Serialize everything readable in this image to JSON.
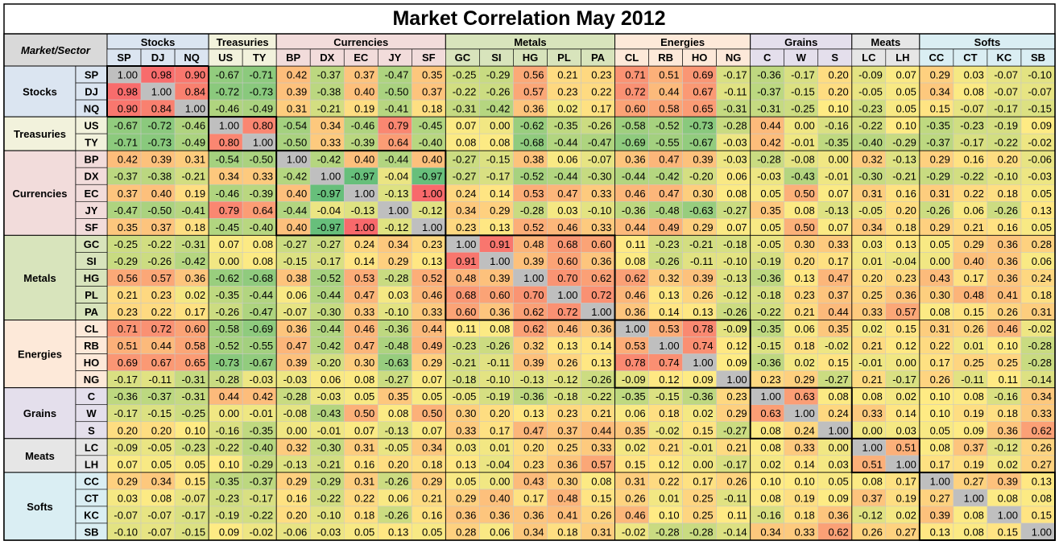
{
  "chart_data": {
    "type": "heatmap",
    "title": "Market Correlation May 2012",
    "corner_label": "Market/Sector",
    "groups": [
      {
        "name": "Stocks",
        "members": [
          "SP",
          "DJ",
          "NQ"
        ],
        "color": "#dbe5f1"
      },
      {
        "name": "Treasuries",
        "members": [
          "US",
          "TY"
        ],
        "color": "#f2f2dc"
      },
      {
        "name": "Currencies",
        "members": [
          "BP",
          "DX",
          "EC",
          "JY",
          "SF"
        ],
        "color": "#f2dcdb"
      },
      {
        "name": "Metals",
        "members": [
          "GC",
          "SI",
          "HG",
          "PL",
          "PA"
        ],
        "color": "#d8e4bc"
      },
      {
        "name": "Energies",
        "members": [
          "CL",
          "RB",
          "HO",
          "NG"
        ],
        "color": "#fde9d9"
      },
      {
        "name": "Grains",
        "members": [
          "C",
          "W",
          "S"
        ],
        "color": "#e4dfec"
      },
      {
        "name": "Meats",
        "members": [
          "LC",
          "LH"
        ],
        "color": "#e6e6e6"
      },
      {
        "name": "Softs",
        "members": [
          "CC",
          "CT",
          "KC",
          "SB"
        ],
        "color": "#daeef3"
      }
    ],
    "labels": [
      "SP",
      "DJ",
      "NQ",
      "US",
      "TY",
      "BP",
      "DX",
      "EC",
      "JY",
      "SF",
      "GC",
      "SI",
      "HG",
      "PL",
      "PA",
      "CL",
      "RB",
      "HO",
      "NG",
      "C",
      "W",
      "S",
      "LC",
      "LH",
      "CC",
      "CT",
      "KC",
      "SB"
    ],
    "matrix": [
      [
        "1.00",
        "0.98",
        "0.90",
        "-0.67",
        "-0.71",
        "0.42",
        "-0.37",
        "0.37",
        "-0.47",
        "0.35",
        "-0.25",
        "-0.29",
        "0.56",
        "0.21",
        "0.23",
        "0.71",
        "0.51",
        "0.69",
        "-0.17",
        "-0.36",
        "-0.17",
        "0.20",
        "-0.09",
        "0.07",
        "0.29",
        "0.03",
        "-0.07",
        "-0.10"
      ],
      [
        "0.98",
        "1.00",
        "0.84",
        "-0.72",
        "-0.73",
        "0.39",
        "-0.38",
        "0.40",
        "-0.50",
        "0.37",
        "-0.22",
        "-0.26",
        "0.57",
        "0.23",
        "0.22",
        "0.72",
        "0.44",
        "0.67",
        "-0.11",
        "-0.37",
        "-0.15",
        "0.20",
        "-0.05",
        "0.05",
        "0.34",
        "0.08",
        "-0.07",
        "-0.07"
      ],
      [
        "0.90",
        "0.84",
        "1.00",
        "-0.46",
        "-0.49",
        "0.31",
        "-0.21",
        "0.19",
        "-0.41",
        "0.18",
        "-0.31",
        "-0.42",
        "0.36",
        "0.02",
        "0.17",
        "0.60",
        "0.58",
        "0.65",
        "-0.31",
        "-0.31",
        "-0.25",
        "0.10",
        "-0.23",
        "0.05",
        "0.15",
        "-0.07",
        "-0.17",
        "-0.15"
      ],
      [
        "-0.67",
        "-0.72",
        "-0.46",
        "1.00",
        "0.80",
        "-0.54",
        "0.34",
        "-0.46",
        "0.79",
        "-0.45",
        "0.07",
        "0.00",
        "-0.62",
        "-0.35",
        "-0.26",
        "-0.58",
        "-0.52",
        "-0.73",
        "-0.28",
        "0.44",
        "0.00",
        "-0.16",
        "-0.22",
        "0.10",
        "-0.35",
        "-0.23",
        "-0.19",
        "0.09"
      ],
      [
        "-0.71",
        "-0.73",
        "-0.49",
        "0.80",
        "1.00",
        "-0.50",
        "0.33",
        "-0.39",
        "0.64",
        "-0.40",
        "0.08",
        "0.08",
        "-0.68",
        "-0.44",
        "-0.47",
        "-0.69",
        "-0.55",
        "-0.67",
        "-0.03",
        "0.42",
        "-0.01",
        "-0.35",
        "-0.40",
        "-0.29",
        "-0.37",
        "-0.17",
        "-0.22",
        "-0.02"
      ],
      [
        "0.42",
        "0.39",
        "0.31",
        "-0.54",
        "-0.50",
        "1.00",
        "-0.42",
        "0.40",
        "-0.44",
        "0.40",
        "-0.27",
        "-0.15",
        "0.38",
        "0.06",
        "-0.07",
        "0.36",
        "0.47",
        "0.39",
        "-0.03",
        "-0.28",
        "-0.08",
        "0.00",
        "0.32",
        "-0.13",
        "0.29",
        "0.16",
        "0.20",
        "-0.06"
      ],
      [
        "-0.37",
        "-0.38",
        "-0.21",
        "0.34",
        "0.33",
        "-0.42",
        "1.00",
        "-0.97",
        "-0.04",
        "-0.97",
        "-0.27",
        "-0.17",
        "-0.52",
        "-0.44",
        "-0.30",
        "-0.44",
        "-0.42",
        "-0.20",
        "0.06",
        "-0.03",
        "-0.43",
        "-0.01",
        "-0.30",
        "-0.21",
        "-0.29",
        "-0.22",
        "-0.10",
        "-0.03"
      ],
      [
        "0.37",
        "0.40",
        "0.19",
        "-0.46",
        "-0.39",
        "0.40",
        "-0.97",
        "1.00",
        "-0.13",
        "1.00",
        "0.24",
        "0.14",
        "0.53",
        "0.47",
        "0.33",
        "0.46",
        "0.47",
        "0.30",
        "0.08",
        "0.05",
        "0.50",
        "0.07",
        "0.31",
        "0.16",
        "0.31",
        "0.22",
        "0.18",
        "0.05"
      ],
      [
        "-0.47",
        "-0.50",
        "-0.41",
        "0.79",
        "0.64",
        "-0.44",
        "-0.04",
        "-0.13",
        "1.00",
        "-0.12",
        "0.34",
        "0.29",
        "-0.28",
        "0.03",
        "-0.10",
        "-0.36",
        "-0.48",
        "-0.63",
        "-0.27",
        "0.35",
        "0.08",
        "-0.13",
        "-0.05",
        "0.20",
        "-0.26",
        "0.06",
        "-0.26",
        "0.13"
      ],
      [
        "0.35",
        "0.37",
        "0.18",
        "-0.45",
        "-0.40",
        "0.40",
        "-0.97",
        "1.00",
        "-0.12",
        "1.00",
        "0.23",
        "0.13",
        "0.52",
        "0.46",
        "0.33",
        "0.44",
        "0.49",
        "0.29",
        "0.07",
        "0.05",
        "0.50",
        "0.07",
        "0.34",
        "0.18",
        "0.29",
        "0.21",
        "0.16",
        "0.05"
      ],
      [
        "-0.25",
        "-0.22",
        "-0.31",
        "0.07",
        "0.08",
        "-0.27",
        "-0.27",
        "0.24",
        "0.34",
        "0.23",
        "1.00",
        "0.91",
        "0.48",
        "0.68",
        "0.60",
        "0.11",
        "-0.23",
        "-0.21",
        "-0.18",
        "-0.05",
        "0.30",
        "0.33",
        "0.03",
        "0.13",
        "0.05",
        "0.29",
        "0.36",
        "0.28"
      ],
      [
        "-0.29",
        "-0.26",
        "-0.42",
        "0.00",
        "0.08",
        "-0.15",
        "-0.17",
        "0.14",
        "0.29",
        "0.13",
        "0.91",
        "1.00",
        "0.39",
        "0.60",
        "0.36",
        "0.08",
        "-0.26",
        "-0.11",
        "-0.10",
        "-0.19",
        "0.20",
        "0.17",
        "0.01",
        "-0.04",
        "0.00",
        "0.40",
        "0.36",
        "0.06"
      ],
      [
        "0.56",
        "0.57",
        "0.36",
        "-0.62",
        "-0.68",
        "0.38",
        "-0.52",
        "0.53",
        "-0.28",
        "0.52",
        "0.48",
        "0.39",
        "1.00",
        "0.70",
        "0.62",
        "0.62",
        "0.32",
        "0.39",
        "-0.13",
        "-0.36",
        "0.13",
        "0.47",
        "0.20",
        "0.23",
        "0.43",
        "0.17",
        "0.36",
        "0.24"
      ],
      [
        "0.21",
        "0.23",
        "0.02",
        "-0.35",
        "-0.44",
        "0.06",
        "-0.44",
        "0.47",
        "0.03",
        "0.46",
        "0.68",
        "0.60",
        "0.70",
        "1.00",
        "0.72",
        "0.46",
        "0.13",
        "0.26",
        "-0.12",
        "-0.18",
        "0.23",
        "0.37",
        "0.25",
        "0.36",
        "0.30",
        "0.48",
        "0.41",
        "0.18"
      ],
      [
        "0.23",
        "0.22",
        "0.17",
        "-0.26",
        "-0.47",
        "-0.07",
        "-0.30",
        "0.33",
        "-0.10",
        "0.33",
        "0.60",
        "0.36",
        "0.62",
        "0.72",
        "1.00",
        "0.36",
        "0.14",
        "0.13",
        "-0.26",
        "-0.22",
        "0.21",
        "0.44",
        "0.33",
        "0.57",
        "0.08",
        "0.15",
        "0.26",
        "0.31"
      ],
      [
        "0.71",
        "0.72",
        "0.60",
        "-0.58",
        "-0.69",
        "0.36",
        "-0.44",
        "0.46",
        "-0.36",
        "0.44",
        "0.11",
        "0.08",
        "0.62",
        "0.46",
        "0.36",
        "1.00",
        "0.53",
        "0.78",
        "-0.09",
        "-0.35",
        "0.06",
        "0.35",
        "0.02",
        "0.15",
        "0.31",
        "0.26",
        "0.46",
        "-0.02"
      ],
      [
        "0.51",
        "0.44",
        "0.58",
        "-0.52",
        "-0.55",
        "0.47",
        "-0.42",
        "0.47",
        "-0.48",
        "0.49",
        "-0.23",
        "-0.26",
        "0.32",
        "0.13",
        "0.14",
        "0.53",
        "1.00",
        "0.74",
        "0.12",
        "-0.15",
        "0.18",
        "-0.02",
        "0.21",
        "0.12",
        "0.22",
        "0.01",
        "0.10",
        "-0.28"
      ],
      [
        "0.69",
        "0.67",
        "0.65",
        "-0.73",
        "-0.67",
        "0.39",
        "-0.20",
        "0.30",
        "-0.63",
        "0.29",
        "-0.21",
        "-0.11",
        "0.39",
        "0.26",
        "0.13",
        "0.78",
        "0.74",
        "1.00",
        "0.09",
        "-0.36",
        "0.02",
        "0.15",
        "-0.01",
        "0.00",
        "0.17",
        "0.25",
        "0.25",
        "-0.28"
      ],
      [
        "-0.17",
        "-0.11",
        "-0.31",
        "-0.28",
        "-0.03",
        "-0.03",
        "0.06",
        "0.08",
        "-0.27",
        "0.07",
        "-0.18",
        "-0.10",
        "-0.13",
        "-0.12",
        "-0.26",
        "-0.09",
        "0.12",
        "0.09",
        "1.00",
        "0.23",
        "0.29",
        "-0.27",
        "0.21",
        "-0.17",
        "0.26",
        "-0.11",
        "0.11",
        "-0.14"
      ],
      [
        "-0.36",
        "-0.37",
        "-0.31",
        "0.44",
        "0.42",
        "-0.28",
        "-0.03",
        "0.05",
        "0.35",
        "0.05",
        "-0.05",
        "-0.19",
        "-0.36",
        "-0.18",
        "-0.22",
        "-0.35",
        "-0.15",
        "-0.36",
        "0.23",
        "1.00",
        "0.63",
        "0.08",
        "0.08",
        "0.02",
        "0.10",
        "0.08",
        "-0.16",
        "0.34"
      ],
      [
        "-0.17",
        "-0.15",
        "-0.25",
        "0.00",
        "-0.01",
        "-0.08",
        "-0.43",
        "0.50",
        "0.08",
        "0.50",
        "0.30",
        "0.20",
        "0.13",
        "0.23",
        "0.21",
        "0.06",
        "0.18",
        "0.02",
        "0.29",
        "0.63",
        "1.00",
        "0.24",
        "0.33",
        "0.14",
        "0.10",
        "0.19",
        "0.18",
        "0.33"
      ],
      [
        "0.20",
        "0.20",
        "0.10",
        "-0.16",
        "-0.35",
        "0.00",
        "-0.01",
        "0.07",
        "-0.13",
        "0.07",
        "0.33",
        "0.17",
        "0.47",
        "0.37",
        "0.44",
        "0.35",
        "-0.02",
        "0.15",
        "-0.27",
        "0.08",
        "0.24",
        "1.00",
        "0.00",
        "0.03",
        "0.05",
        "0.09",
        "0.36",
        "0.62"
      ],
      [
        "-0.09",
        "-0.05",
        "-0.23",
        "-0.22",
        "-0.40",
        "0.32",
        "-0.30",
        "0.31",
        "-0.05",
        "0.34",
        "0.03",
        "0.01",
        "0.20",
        "0.25",
        "0.33",
        "0.02",
        "0.21",
        "-0.01",
        "0.21",
        "0.08",
        "0.33",
        "0.00",
        "1.00",
        "0.51",
        "0.08",
        "0.37",
        "-0.12",
        "0.26"
      ],
      [
        "0.07",
        "0.05",
        "0.05",
        "0.10",
        "-0.29",
        "-0.13",
        "-0.21",
        "0.16",
        "0.20",
        "0.18",
        "0.13",
        "-0.04",
        "0.23",
        "0.36",
        "0.57",
        "0.15",
        "0.12",
        "0.00",
        "-0.17",
        "0.02",
        "0.14",
        "0.03",
        "0.51",
        "1.00",
        "0.17",
        "0.19",
        "0.02",
        "0.27"
      ],
      [
        "0.29",
        "0.34",
        "0.15",
        "-0.35",
        "-0.37",
        "0.29",
        "-0.29",
        "0.31",
        "-0.26",
        "0.29",
        "0.05",
        "0.00",
        "0.43",
        "0.30",
        "0.08",
        "0.31",
        "0.22",
        "0.17",
        "0.26",
        "0.10",
        "0.10",
        "0.05",
        "0.08",
        "0.17",
        "1.00",
        "0.27",
        "0.39",
        "0.13"
      ],
      [
        "0.03",
        "0.08",
        "-0.07",
        "-0.23",
        "-0.17",
        "0.16",
        "-0.22",
        "0.22",
        "0.06",
        "0.21",
        "0.29",
        "0.40",
        "0.17",
        "0.48",
        "0.15",
        "0.26",
        "0.01",
        "0.25",
        "-0.11",
        "0.08",
        "0.19",
        "0.09",
        "0.37",
        "0.19",
        "0.27",
        "1.00",
        "0.08",
        "0.08"
      ],
      [
        "-0.07",
        "-0.07",
        "-0.17",
        "-0.19",
        "-0.22",
        "0.20",
        "-0.10",
        "0.18",
        "-0.26",
        "0.16",
        "0.36",
        "0.36",
        "0.36",
        "0.41",
        "0.26",
        "0.46",
        "0.10",
        "0.25",
        "0.11",
        "-0.16",
        "0.18",
        "0.36",
        "-0.12",
        "0.02",
        "0.39",
        "0.08",
        "1.00",
        "0.15"
      ],
      [
        "-0.10",
        "-0.07",
        "-0.15",
        "0.09",
        "-0.02",
        "-0.06",
        "-0.03",
        "0.05",
        "0.13",
        "0.05",
        "0.28",
        "0.06",
        "0.34",
        "0.18",
        "0.31",
        "-0.02",
        "-0.28",
        "-0.28",
        "-0.14",
        "0.34",
        "0.33",
        "0.62",
        "0.26",
        "0.27",
        "0.13",
        "0.08",
        "0.15",
        "1.00"
      ]
    ],
    "color_scale": {
      "min_value": -1,
      "mid_value": 0.1,
      "max_value": 1,
      "min_color": "#63be7b",
      "mid_color": "#ffeb84",
      "max_color": "#f8696b",
      "diagonal_color": "#bfbfbf"
    }
  }
}
